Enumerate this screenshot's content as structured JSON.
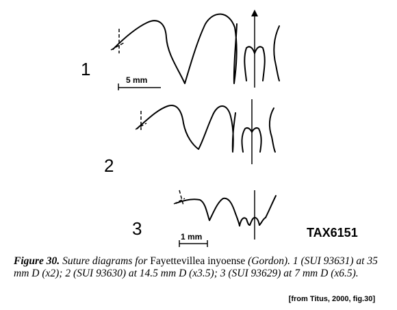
{
  "figure": {
    "labels": [
      "1",
      "2",
      "3"
    ],
    "scale_bars": [
      "5 mm",
      "1 mm"
    ],
    "tax_code": "TAX6151"
  },
  "caption": {
    "figure_label": "Figure 30.",
    "text_before_taxon": " Suture diagrams for ",
    "taxon": "Fayettevillea inyoense",
    "text_after_taxon": " (Gordon).  1 (SUI 93631) at 35 mm D (x2); 2 (SUI 93630) at 14.5 mm D (x3.5); 3 (SUI 93629) at 7 mm D (x6.5)."
  },
  "source": "[from Titus, 2000, fig.30]"
}
